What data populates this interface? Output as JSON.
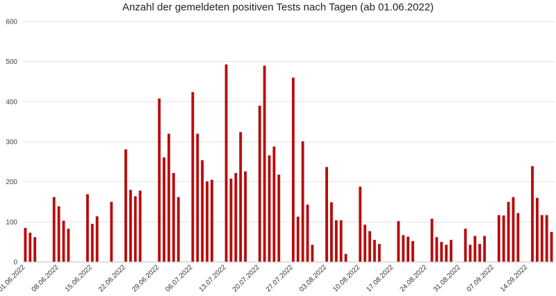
{
  "chart_data": {
    "type": "bar",
    "title": "Anzahl der gemeldeten positiven Tests nach Tagen (ab 01.06.2022)",
    "xlabel": "",
    "ylabel": "",
    "ylim": [
      0,
      600
    ],
    "yticks": [
      0,
      100,
      200,
      300,
      400,
      500,
      600
    ],
    "grid": true,
    "bar_color": "#b80c0c",
    "x_tick_labels": [
      "01.06.2022",
      "08.06.2022",
      "15.06.2022",
      "22.06.2022",
      "29.06.2022",
      "06.07.2022",
      "13.07.2022",
      "20.07.2022",
      "27.07.2022",
      "03.08.2022",
      "10.08.2022",
      "17.08.2022",
      "24.08.2022",
      "31.08.2022",
      "07.09.2022",
      "14.09.2022"
    ],
    "x_tick_every_days": 7,
    "categories": [
      "01.06.2022",
      "02.06.2022",
      "03.06.2022",
      "04.06.2022",
      "05.06.2022",
      "06.06.2022",
      "07.06.2022",
      "08.06.2022",
      "09.06.2022",
      "10.06.2022",
      "11.06.2022",
      "12.06.2022",
      "13.06.2022",
      "14.06.2022",
      "15.06.2022",
      "16.06.2022",
      "17.06.2022",
      "18.06.2022",
      "19.06.2022",
      "20.06.2022",
      "21.06.2022",
      "22.06.2022",
      "23.06.2022",
      "24.06.2022",
      "25.06.2022",
      "26.06.2022",
      "27.06.2022",
      "28.06.2022",
      "29.06.2022",
      "30.06.2022",
      "01.07.2022",
      "02.07.2022",
      "03.07.2022",
      "04.07.2022",
      "05.07.2022",
      "06.07.2022",
      "07.07.2022",
      "08.07.2022",
      "09.07.2022",
      "10.07.2022",
      "11.07.2022",
      "12.07.2022",
      "13.07.2022",
      "14.07.2022",
      "15.07.2022",
      "16.07.2022",
      "17.07.2022",
      "18.07.2022",
      "19.07.2022",
      "20.07.2022",
      "21.07.2022",
      "22.07.2022",
      "23.07.2022",
      "24.07.2022",
      "25.07.2022",
      "26.07.2022",
      "27.07.2022",
      "28.07.2022",
      "29.07.2022",
      "30.07.2022",
      "31.07.2022",
      "01.08.2022",
      "02.08.2022",
      "03.08.2022",
      "04.08.2022",
      "05.08.2022",
      "06.08.2022",
      "07.08.2022",
      "08.08.2022",
      "09.08.2022",
      "10.08.2022",
      "11.08.2022",
      "12.08.2022",
      "13.08.2022",
      "14.08.2022",
      "15.08.2022",
      "16.08.2022",
      "17.08.2022",
      "18.08.2022",
      "19.08.2022",
      "20.08.2022",
      "21.08.2022",
      "22.08.2022",
      "23.08.2022",
      "24.08.2022",
      "25.08.2022",
      "26.08.2022",
      "27.08.2022",
      "28.08.2022",
      "29.08.2022",
      "30.08.2022",
      "31.08.2022",
      "01.09.2022",
      "02.09.2022",
      "03.09.2022",
      "04.09.2022",
      "05.09.2022",
      "06.09.2022",
      "07.09.2022",
      "08.09.2022",
      "09.09.2022",
      "10.09.2022",
      "11.09.2022",
      "12.09.2022",
      "13.09.2022",
      "14.09.2022",
      "15.09.2022",
      "16.09.2022",
      "17.09.2022",
      "18.09.2022",
      "19.09.2022"
    ],
    "values": [
      85,
      73,
      62,
      0,
      0,
      0,
      162,
      139,
      103,
      83,
      0,
      0,
      0,
      169,
      95,
      114,
      0,
      0,
      150,
      0,
      0,
      281,
      180,
      164,
      178,
      0,
      0,
      0,
      408,
      261,
      320,
      222,
      162,
      0,
      0,
      424,
      320,
      254,
      201,
      205,
      0,
      0,
      493,
      208,
      222,
      324,
      226,
      0,
      0,
      390,
      490,
      266,
      288,
      218,
      0,
      0,
      460,
      113,
      301,
      143,
      43,
      0,
      0,
      237,
      149,
      104,
      104,
      20,
      0,
      0,
      188,
      93,
      77,
      55,
      45,
      0,
      0,
      0,
      102,
      67,
      63,
      52,
      0,
      0,
      0,
      108,
      62,
      50,
      43,
      55,
      0,
      0,
      83,
      43,
      65,
      45,
      65,
      0,
      0,
      117,
      116,
      150,
      162,
      122,
      0,
      0,
      239,
      160,
      117,
      117,
      75
    ]
  }
}
